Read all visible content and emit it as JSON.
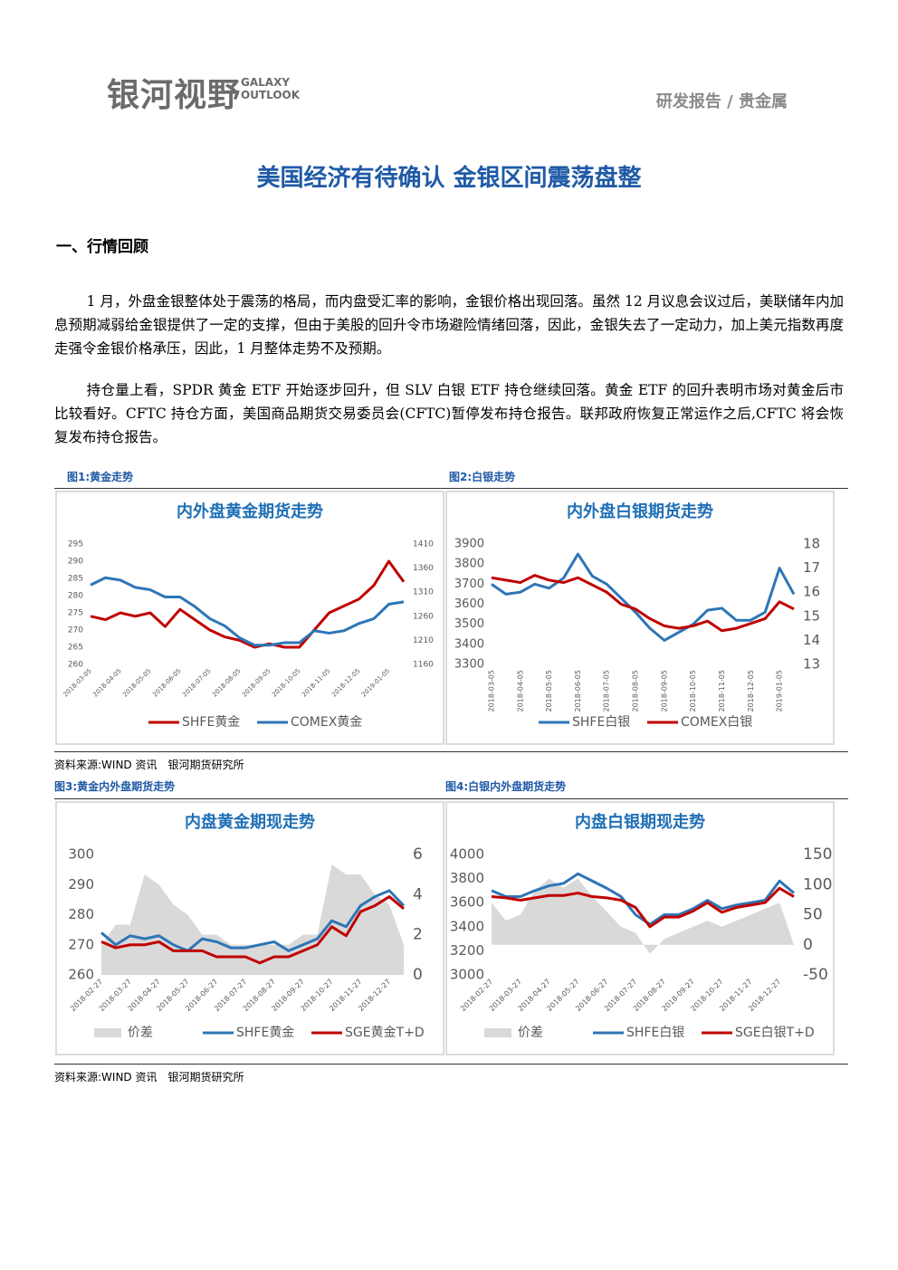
{
  "header": {
    "logo": "银河视野",
    "logo_en": [
      "GALAXY",
      "OUTLOOK"
    ],
    "section": "研发报告 / 贵金属"
  },
  "title": "美国经济有待确认  金银区间震荡盘整",
  "heading": "一、行情回顾",
  "paragraphs": [
    "1 月，外盘金银整体处于震荡的格局，而内盘受汇率的影响，金银价格出现回落。虽然 12 月议息会议过后，美联储年内加息预期减弱给金银提供了一定的支撑，但由于美股的回升令市场避险情绪回落，因此，金银失去了一定动力，加上美元指数再度走强令金银价格承压，因此，1 月整体走势不及预期。",
    "持仓量上看，SPDR 黄金 ETF 开始逐步回升，但 SLV 白银 ETF 持仓继续回落。黄金 ETF 的回升表明市场对黄金后市比较看好。CFTC 持仓方面，美国商品期货交易委员会(CFTC)暂停发布持仓报告。联邦政府恢复正常运作之后,CFTC 将会恢复发布持仓报告。"
  ],
  "captions": [
    "图1:黄金走势",
    "图2:白银走势",
    "图3:黄金内外盘期货走势",
    "图4:白银内外盘期货走势"
  ],
  "sources": [
    "资料来源:WIND 资讯　银河期货研究所",
    "资料来源:WIND 资讯　银河期货研究所"
  ],
  "chart_data": [
    {
      "type": "line",
      "title": "内外盘黄金期货走势",
      "categories": [
        "2018-03-05",
        null,
        "2018-04-05",
        null,
        "2018-05-05",
        null,
        "2018-06-05",
        null,
        "2018-07-05",
        null,
        "2018-08-05",
        null,
        "2018-09-05",
        null,
        "2018-10-05",
        null,
        "2018-11-05",
        null,
        "2018-12-05",
        null,
        "2019-01-05",
        null
      ],
      "series": [
        {
          "name": "SHFE黄金",
          "color": "#c00000",
          "axis": "y",
          "values": [
            274,
            273,
            275,
            274,
            275,
            271,
            276,
            273,
            270,
            268,
            267,
            265,
            266,
            265,
            265,
            270,
            275,
            277,
            279,
            283,
            290,
            284
          ]
        },
        {
          "name": "COMEX黄金",
          "color": "#2e75b6",
          "axis": "y2",
          "values": [
            1325,
            1340,
            1335,
            1320,
            1315,
            1300,
            1300,
            1280,
            1255,
            1240,
            1215,
            1200,
            1200,
            1205,
            1205,
            1230,
            1225,
            1230,
            1245,
            1255,
            1285,
            1290
          ]
        }
      ],
      "ylim": [
        260,
        295
      ],
      "yticks": [
        260,
        265,
        270,
        275,
        280,
        285,
        290,
        295
      ],
      "y2lim": [
        1160,
        1410
      ],
      "y2ticks": [
        1160,
        1210,
        1260,
        1310,
        1360,
        1410
      ]
    },
    {
      "type": "line",
      "title": "内外盘白银期货走势",
      "categories": [
        "2018-03-05",
        null,
        "2018-04-05",
        null,
        "2018-05-05",
        null,
        "2018-06-05",
        null,
        "2018-07-05",
        null,
        "2018-08-05",
        null,
        "2018-09-05",
        null,
        "2018-10-05",
        null,
        "2018-11-05",
        null,
        "2018-12-05",
        null,
        "2019-01-05",
        null
      ],
      "series": [
        {
          "name": "SHFE白银",
          "color": "#2e75b6",
          "axis": "y",
          "values": [
            3700,
            3650,
            3660,
            3700,
            3680,
            3730,
            3850,
            3740,
            3700,
            3630,
            3560,
            3480,
            3420,
            3460,
            3500,
            3570,
            3580,
            3520,
            3520,
            3560,
            3780,
            3650
          ]
        },
        {
          "name": "COMEX白银",
          "color": "#c00000",
          "axis": "y2",
          "values": [
            16.6,
            16.5,
            16.4,
            16.7,
            16.5,
            16.4,
            16.6,
            16.3,
            16.0,
            15.5,
            15.3,
            14.9,
            14.6,
            14.5,
            14.6,
            14.8,
            14.4,
            14.5,
            14.7,
            14.9,
            15.6,
            15.3
          ]
        }
      ],
      "ylim": [
        3300,
        3900
      ],
      "yticks": [
        3300,
        3400,
        3500,
        3600,
        3700,
        3800,
        3900
      ],
      "y2lim": [
        13,
        18
      ],
      "y2ticks": [
        13,
        14,
        15,
        16,
        17,
        18
      ]
    },
    {
      "type": "line",
      "title": "内盘黄金期现走势",
      "categories": [
        "2018-02-27",
        null,
        "2018-03-27",
        null,
        "2018-04-27",
        null,
        "2018-05-27",
        null,
        "2018-06-27",
        null,
        "2018-07-27",
        null,
        "2018-08-27",
        null,
        "2018-09-27",
        null,
        "2018-10-27",
        null,
        "2018-11-27",
        null,
        "2018-12-27",
        null
      ],
      "series": [
        {
          "name": "价差",
          "color": "#d9d9d9",
          "axis": "y2",
          "type": "area",
          "values": [
            1.5,
            2.5,
            2.5,
            5,
            4.5,
            3.5,
            3,
            2,
            2,
            1.5,
            1.5,
            1.5,
            1.5,
            1.5,
            2,
            2,
            5.5,
            5,
            5,
            4,
            3.5,
            1.5
          ]
        },
        {
          "name": "SHFE黄金",
          "color": "#2e75b6",
          "axis": "y",
          "values": [
            274,
            270,
            273,
            272,
            273,
            270,
            268,
            272,
            271,
            269,
            269,
            270,
            271,
            268,
            270,
            272,
            278,
            276,
            283,
            286,
            288,
            283
          ]
        },
        {
          "name": "SGE黄金T+D",
          "color": "#c00000",
          "axis": "y",
          "values": [
            271,
            269,
            270,
            270,
            271,
            268,
            268,
            268,
            266,
            266,
            266,
            264,
            266,
            266,
            268,
            270,
            276,
            273,
            281,
            283,
            286,
            282
          ]
        }
      ],
      "ylim": [
        260,
        300
      ],
      "yticks": [
        260,
        270,
        280,
        290,
        300
      ],
      "y2lim": [
        0,
        6
      ],
      "y2ticks": [
        0,
        2,
        4,
        6
      ]
    },
    {
      "type": "line",
      "title": "内盘白银期现走势",
      "categories": [
        "2018-02-27",
        null,
        "2018-03-27",
        null,
        "2018-04-27",
        null,
        "2018-05-27",
        null,
        "2018-06-27",
        null,
        "2018-07-27",
        null,
        "2018-08-27",
        null,
        "2018-09-27",
        null,
        "2018-10-27",
        null,
        "2018-11-27",
        null,
        "2018-12-27",
        null
      ],
      "series": [
        {
          "name": "价差",
          "color": "#d9d9d9",
          "axis": "y2",
          "type": "area",
          "values": [
            70,
            40,
            50,
            90,
            110,
            95,
            110,
            80,
            55,
            30,
            20,
            -15,
            10,
            20,
            30,
            40,
            30,
            40,
            50,
            60,
            70,
            0
          ]
        },
        {
          "name": "SHFE白银",
          "color": "#2e75b6",
          "axis": "y",
          "values": [
            3700,
            3650,
            3650,
            3700,
            3740,
            3760,
            3840,
            3780,
            3720,
            3650,
            3500,
            3420,
            3500,
            3500,
            3550,
            3620,
            3550,
            3580,
            3600,
            3620,
            3780,
            3680
          ]
        },
        {
          "name": "SGE白银T+D",
          "color": "#c00000",
          "axis": "y",
          "values": [
            3650,
            3640,
            3620,
            3640,
            3660,
            3660,
            3680,
            3650,
            3640,
            3620,
            3560,
            3400,
            3480,
            3480,
            3530,
            3600,
            3520,
            3560,
            3580,
            3600,
            3720,
            3650
          ]
        }
      ],
      "ylim": [
        3000,
        4000
      ],
      "yticks": [
        3000,
        3200,
        3400,
        3600,
        3800,
        4000
      ],
      "y2lim": [
        -50,
        150
      ],
      "y2ticks": [
        -50,
        0,
        50,
        100,
        150
      ]
    }
  ]
}
